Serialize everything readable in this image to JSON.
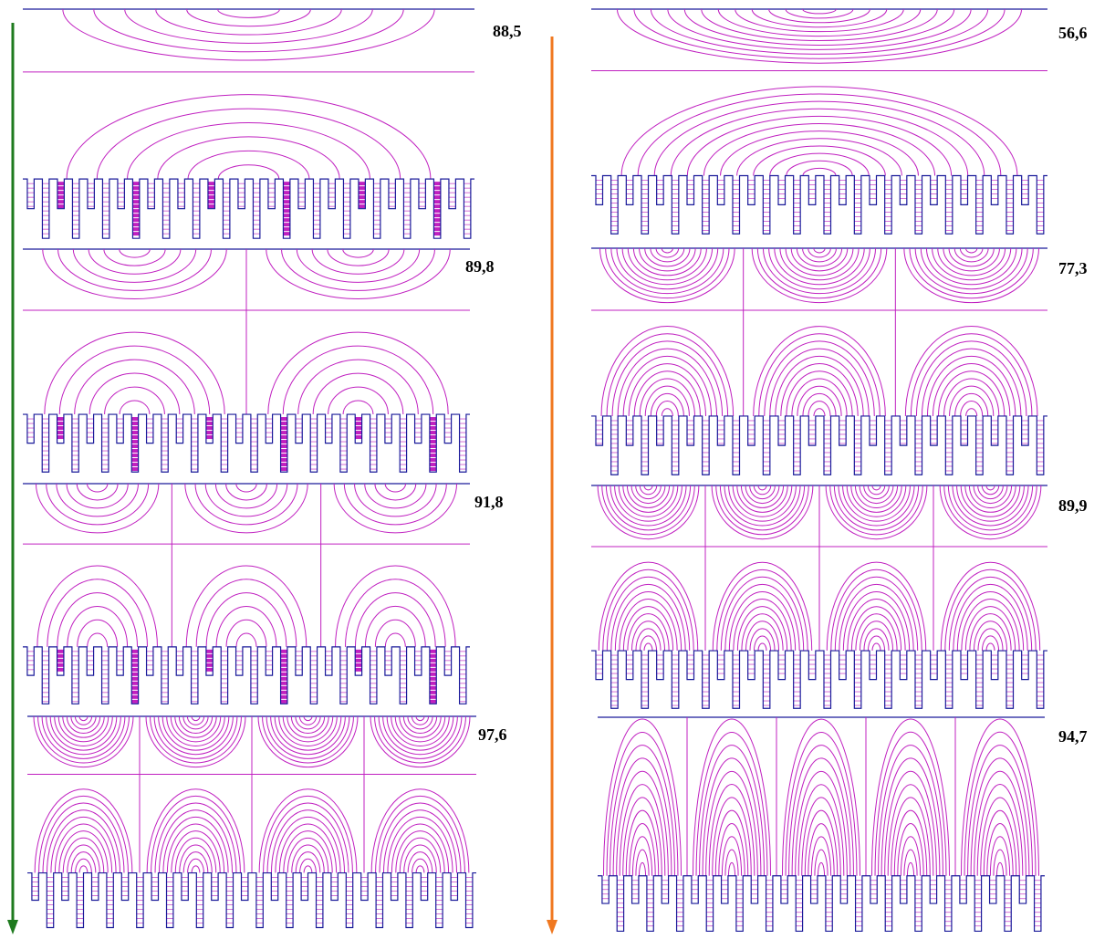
{
  "panels": [
    {
      "label": "88,5"
    },
    {
      "label": "89,8"
    },
    {
      "label": "91,8"
    },
    {
      "label": "97,6"
    },
    {
      "label": "56,6"
    },
    {
      "label": "77,3"
    },
    {
      "label": "89,9"
    },
    {
      "label": "94,7"
    }
  ]
}
